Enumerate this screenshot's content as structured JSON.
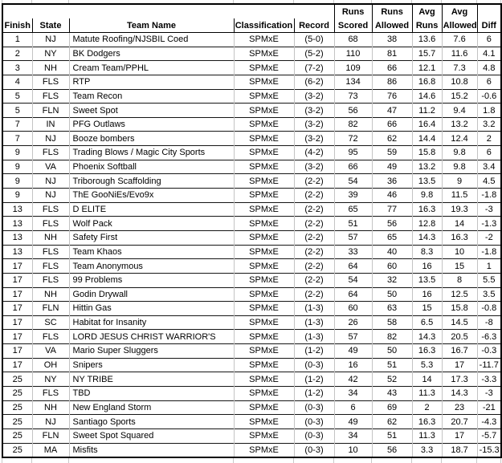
{
  "header": {
    "group_row": {
      "runs_a": "Runs",
      "runs_b": "Runs",
      "avg_a": "Avg",
      "avg_b": "Avg"
    },
    "columns": [
      "Finish",
      "State",
      "Team Name",
      "Classification",
      "Record",
      "Scored",
      "Allowed",
      "Runs",
      "Allowed",
      "Diff"
    ]
  },
  "rows": [
    [
      "1",
      "NJ",
      "Matute Roofing/NJSBIL Coed",
      "SPMxE",
      "(5-0)",
      "68",
      "38",
      "13.6",
      "7.6",
      "6"
    ],
    [
      "2",
      "NY",
      "BK Dodgers",
      "SPMxE",
      "(5-2)",
      "110",
      "81",
      "15.7",
      "11.6",
      "4.1"
    ],
    [
      "3",
      "NH",
      "Cream Team/PPHL",
      "SPMxE",
      "(7-2)",
      "109",
      "66",
      "12.1",
      "7.3",
      "4.8"
    ],
    [
      "4",
      "FLS",
      "RTP",
      "SPMxE",
      "(6-2)",
      "134",
      "86",
      "16.8",
      "10.8",
      "6"
    ],
    [
      "5",
      "FLS",
      "Team Recon",
      "SPMxE",
      "(3-2)",
      "73",
      "76",
      "14.6",
      "15.2",
      "-0.6"
    ],
    [
      "5",
      "FLN",
      "Sweet Spot",
      "SPMxE",
      "(3-2)",
      "56",
      "47",
      "11.2",
      "9.4",
      "1.8"
    ],
    [
      "7",
      "IN",
      "PFG Outlaws",
      "SPMxE",
      "(3-2)",
      "82",
      "66",
      "16.4",
      "13.2",
      "3.2"
    ],
    [
      "7",
      "NJ",
      "Booze bombers",
      "SPMxE",
      "(3-2)",
      "72",
      "62",
      "14.4",
      "12.4",
      "2"
    ],
    [
      "9",
      "FLS",
      "Trading Blows / Magic City Sports",
      "SPMxE",
      "(4-2)",
      "95",
      "59",
      "15.8",
      "9.8",
      "6"
    ],
    [
      "9",
      "VA",
      "Phoenix Softball",
      "SPMxE",
      "(3-2)",
      "66",
      "49",
      "13.2",
      "9.8",
      "3.4"
    ],
    [
      "9",
      "NJ",
      "Triborough Scaffolding",
      "SPMxE",
      "(2-2)",
      "54",
      "36",
      "13.5",
      "9",
      "4.5"
    ],
    [
      "9",
      "NJ",
      "ThE GooNiEs/Evo9x",
      "SPMxE",
      "(2-2)",
      "39",
      "46",
      "9.8",
      "11.5",
      "-1.8"
    ],
    [
      "13",
      "FLS",
      "D ELITE",
      "SPMxE",
      "(2-2)",
      "65",
      "77",
      "16.3",
      "19.3",
      "-3"
    ],
    [
      "13",
      "FLS",
      "Wolf Pack",
      "SPMxE",
      "(2-2)",
      "51",
      "56",
      "12.8",
      "14",
      "-1.3"
    ],
    [
      "13",
      "NH",
      "Safety First",
      "SPMxE",
      "(2-2)",
      "57",
      "65",
      "14.3",
      "16.3",
      "-2"
    ],
    [
      "13",
      "FLS",
      "Team Khaos",
      "SPMxE",
      "(2-2)",
      "33",
      "40",
      "8.3",
      "10",
      "-1.8"
    ],
    [
      "17",
      "FLS",
      "Team Anonymous",
      "SPMxE",
      "(2-2)",
      "64",
      "60",
      "16",
      "15",
      "1"
    ],
    [
      "17",
      "FLS",
      "99 Problems",
      "SPMxE",
      "(2-2)",
      "54",
      "32",
      "13.5",
      "8",
      "5.5"
    ],
    [
      "17",
      "NH",
      "Godin Drywall",
      "SPMxE",
      "(2-2)",
      "64",
      "50",
      "16",
      "12.5",
      "3.5"
    ],
    [
      "17",
      "FLN",
      "Hittin Gas",
      "SPMxE",
      "(1-3)",
      "60",
      "63",
      "15",
      "15.8",
      "-0.8"
    ],
    [
      "17",
      "SC",
      "Habitat for Insanity",
      "SPMxE",
      "(1-3)",
      "26",
      "58",
      "6.5",
      "14.5",
      "-8"
    ],
    [
      "17",
      "FLS",
      "LORD JESUS CHRIST WARRIOR'S",
      "SPMxE",
      "(1-3)",
      "57",
      "82",
      "14.3",
      "20.5",
      "-6.3"
    ],
    [
      "17",
      "VA",
      "Mario Super Sluggers",
      "SPMxE",
      "(1-2)",
      "49",
      "50",
      "16.3",
      "16.7",
      "-0.3"
    ],
    [
      "17",
      "OH",
      "Snipers",
      "SPMxE",
      "(0-3)",
      "16",
      "51",
      "5.3",
      "17",
      "-11.7"
    ],
    [
      "25",
      "NY",
      "NY TRIBE",
      "SPMxE",
      "(1-2)",
      "42",
      "52",
      "14",
      "17.3",
      "-3.3"
    ],
    [
      "25",
      "FLS",
      "TBD",
      "SPMxE",
      "(1-2)",
      "34",
      "43",
      "11.3",
      "14.3",
      "-3"
    ],
    [
      "25",
      "NH",
      "New England Storm",
      "SPMxE",
      "(0-3)",
      "6",
      "69",
      "2",
      "23",
      "-21"
    ],
    [
      "25",
      "NJ",
      "Santiago Sports",
      "SPMxE",
      "(0-3)",
      "49",
      "62",
      "16.3",
      "20.7",
      "-4.3"
    ],
    [
      "25",
      "FLN",
      "Sweet Spot Squared",
      "SPMxE",
      "(0-3)",
      "34",
      "51",
      "11.3",
      "17",
      "-5.7"
    ],
    [
      "25",
      "MA",
      "Misfits",
      "SPMxE",
      "(0-3)",
      "10",
      "56",
      "3.3",
      "18.7",
      "-15.3"
    ]
  ],
  "colors": {
    "outer_border": "#000000",
    "row_border": "#151515",
    "column_border": "#c3c3c3",
    "text": "#000000",
    "background": "#ffffff"
  }
}
